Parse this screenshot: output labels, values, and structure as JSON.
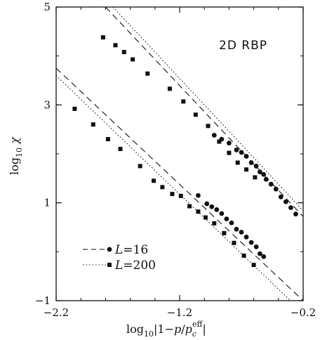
{
  "chart_data": {
    "type": "scatter",
    "title": "",
    "annotation": "2D RBP",
    "xlabel": "log10|1−p/pc^eff|",
    "ylabel": "log10 χ",
    "xlim": [
      -2.2,
      -0.2
    ],
    "ylim": [
      -1,
      5
    ],
    "xticks": [
      {
        "value": -2.2,
        "label": "−2.2"
      },
      {
        "value": -1.2,
        "label": "−1.2"
      },
      {
        "value": -0.2,
        "label": "−0.2"
      }
    ],
    "yticks": [
      {
        "value": -1,
        "label": "−1"
      },
      {
        "value": 1,
        "label": "1"
      },
      {
        "value": 3,
        "label": "3"
      },
      {
        "value": 5,
        "label": "5"
      }
    ],
    "grid": false,
    "legend_position": "bottom-left",
    "series": [
      {
        "name": "L=16",
        "marker": "circle",
        "line_style": "dashed",
        "points": [
          [
            -0.92,
            2.38
          ],
          [
            -0.86,
            2.3
          ],
          [
            -0.8,
            2.22
          ],
          [
            -0.74,
            2.08
          ],
          [
            -0.7,
            2.03
          ],
          [
            -0.66,
            1.95
          ],
          [
            -0.62,
            1.82
          ],
          [
            -0.58,
            1.75
          ],
          [
            -0.55,
            1.63
          ],
          [
            -0.52,
            1.58
          ],
          [
            -0.5,
            1.48
          ],
          [
            -0.46,
            1.38
          ],
          [
            -0.42,
            1.28
          ],
          [
            -0.38,
            1.12
          ],
          [
            -0.34,
            1.02
          ],
          [
            -0.3,
            0.9
          ],
          [
            -0.26,
            0.77
          ],
          [
            -1.05,
            1.15
          ],
          [
            -0.98,
            0.98
          ],
          [
            -0.94,
            0.92
          ],
          [
            -0.9,
            0.86
          ],
          [
            -0.86,
            0.78
          ],
          [
            -0.82,
            0.67
          ],
          [
            -0.78,
            0.59
          ],
          [
            -0.74,
            0.46
          ],
          [
            -0.7,
            0.4
          ],
          [
            -0.66,
            0.3
          ],
          [
            -0.62,
            0.19
          ],
          [
            -0.58,
            0.1
          ],
          [
            -0.55,
            -0.04
          ],
          [
            -0.52,
            -0.1
          ]
        ],
        "fit_lines": [
          {
            "from": [
              -1.8,
              5.0
            ],
            "to": [
              -0.2,
              0.72
            ]
          },
          {
            "from": [
              -2.2,
              3.75
            ],
            "to": [
              -0.2,
              -1.0
            ]
          }
        ]
      },
      {
        "name": "L=200",
        "marker": "square",
        "line_style": "dotted",
        "points": [
          [
            -1.82,
            4.38
          ],
          [
            -1.72,
            4.22
          ],
          [
            -1.65,
            4.08
          ],
          [
            -1.58,
            3.93
          ],
          [
            -1.46,
            3.64
          ],
          [
            -1.28,
            3.33
          ],
          [
            -1.17,
            3.07
          ],
          [
            -1.07,
            2.8
          ],
          [
            -0.97,
            2.57
          ],
          [
            -0.88,
            2.25
          ],
          [
            -0.8,
            2.02
          ],
          [
            -0.73,
            1.82
          ],
          [
            -0.66,
            1.68
          ],
          [
            -0.59,
            1.52
          ],
          [
            -2.05,
            2.92
          ],
          [
            -1.9,
            2.6
          ],
          [
            -1.78,
            2.3
          ],
          [
            -1.68,
            2.1
          ],
          [
            -1.52,
            1.75
          ],
          [
            -1.41,
            1.45
          ],
          [
            -1.34,
            1.32
          ],
          [
            -1.26,
            1.18
          ],
          [
            -1.19,
            1.14
          ],
          [
            -1.12,
            0.93
          ],
          [
            -1.05,
            0.82
          ],
          [
            -0.99,
            0.7
          ],
          [
            -0.92,
            0.58
          ],
          [
            -0.84,
            0.38
          ],
          [
            -0.76,
            0.18
          ],
          [
            -0.68,
            -0.08
          ],
          [
            -0.6,
            -0.27
          ]
        ],
        "fit_lines": [
          {
            "from": [
              -1.74,
              5.0
            ],
            "to": [
              -0.2,
              0.84
            ]
          },
          {
            "from": [
              -2.2,
              3.6
            ],
            "to": [
              -0.2,
              -1.25
            ]
          }
        ]
      }
    ]
  }
}
